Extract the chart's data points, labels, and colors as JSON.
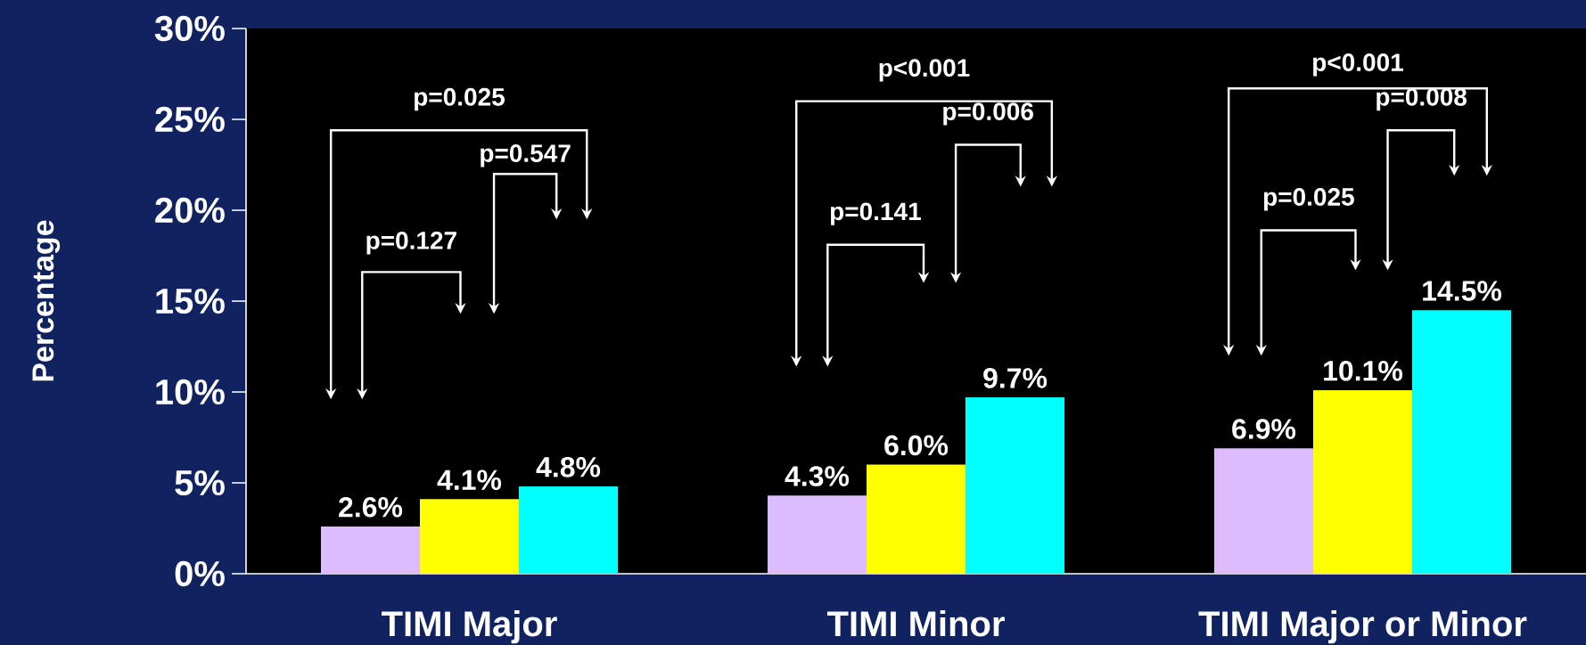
{
  "chart_data": {
    "type": "bar",
    "ylabel": "Percentage",
    "categories": [
      "TIMI Major",
      "TIMI Minor",
      "TIMI Major or Minor"
    ],
    "series": [
      {
        "color": "#dcbcff",
        "values": [
          2.6,
          4.3,
          6.9
        ],
        "value_labels": [
          "2.6%",
          "4.3%",
          "6.9%"
        ]
      },
      {
        "color": "#ffff00",
        "values": [
          4.1,
          6.0,
          10.1
        ],
        "value_labels": [
          "4.1%",
          "6.0%",
          "10.1%"
        ]
      },
      {
        "color": "#00ffff",
        "values": [
          4.8,
          9.7,
          14.5
        ],
        "value_labels": [
          "4.8%",
          "9.7%",
          "14.5%"
        ]
      }
    ],
    "ylim": [
      0,
      30
    ],
    "yticks": [
      {
        "value": 0,
        "label": "0%"
      },
      {
        "value": 5,
        "label": "5%"
      },
      {
        "value": 10,
        "label": "10%"
      },
      {
        "value": 15,
        "label": "15%"
      },
      {
        "value": 20,
        "label": "20%"
      },
      {
        "value": 25,
        "label": "25%"
      },
      {
        "value": 30,
        "label": "30%"
      }
    ],
    "annotations": [
      "p=0.025",
      "p=0.127",
      "p=0.547",
      "p<0.001",
      "p=0.141",
      "p=0.006",
      "p<0.001",
      "p=0.025",
      "p=0.008"
    ],
    "grid": false
  }
}
